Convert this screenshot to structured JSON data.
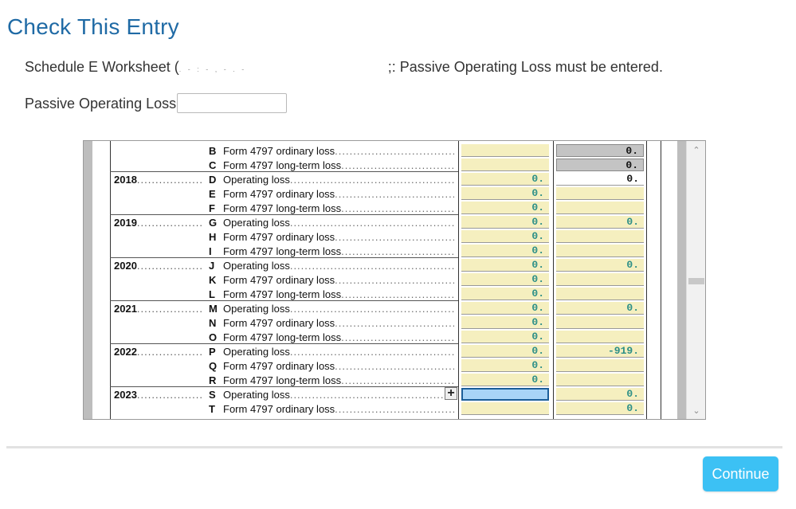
{
  "page": {
    "title": "Check This Entry",
    "message_prefix": "Schedule E Worksheet (",
    "message_redacted": ". - : - , - . -",
    "message_suffix": ";: Passive Operating Loss must be entered."
  },
  "field": {
    "label": "Passive Operating Loss",
    "value": ""
  },
  "worksheet": {
    "rows": [
      {
        "year": "",
        "letter": "B",
        "desc": "Form 4797 ordinary loss",
        "col1": "",
        "col2": "0.",
        "col2_style": "gray",
        "sep": false
      },
      {
        "year": "",
        "letter": "C",
        "desc": "Form 4797 long-term loss",
        "col1": "",
        "col2": "0.",
        "col2_style": "gray",
        "sep": true
      },
      {
        "year": "2018",
        "letter": "D",
        "desc": "Operating loss",
        "col1": "0.",
        "col2": "0.",
        "col2_style": "white",
        "sep": false
      },
      {
        "year": "",
        "letter": "E",
        "desc": "Form 4797 ordinary loss",
        "col1": "0.",
        "col2": "",
        "col2_style": "yellow",
        "sep": false
      },
      {
        "year": "",
        "letter": "F",
        "desc": "Form 4797 long-term loss",
        "col1": "0.",
        "col2": "",
        "col2_style": "yellow",
        "sep": true
      },
      {
        "year": "2019",
        "letter": "G",
        "desc": "Operating loss",
        "col1": "0.",
        "col2": "0.",
        "col2_style": "yellow",
        "sep": false
      },
      {
        "year": "",
        "letter": "H",
        "desc": "Form 4797 ordinary loss",
        "col1": "0.",
        "col2": "",
        "col2_style": "yellow",
        "sep": false
      },
      {
        "year": "",
        "letter": "I",
        "desc": "Form 4797 long-term loss",
        "col1": "0.",
        "col2": "",
        "col2_style": "yellow",
        "sep": true
      },
      {
        "year": "2020",
        "letter": "J",
        "desc": "Operating loss",
        "col1": "0.",
        "col2": "0.",
        "col2_style": "yellow",
        "sep": false
      },
      {
        "year": "",
        "letter": "K",
        "desc": "Form 4797 ordinary loss",
        "col1": "0.",
        "col2": "",
        "col2_style": "yellow",
        "sep": false
      },
      {
        "year": "",
        "letter": "L",
        "desc": "Form 4797 long-term loss",
        "col1": "0.",
        "col2": "",
        "col2_style": "yellow",
        "sep": true
      },
      {
        "year": "2021",
        "letter": "M",
        "desc": "Operating loss",
        "col1": "0.",
        "col2": "0.",
        "col2_style": "yellow",
        "sep": false
      },
      {
        "year": "",
        "letter": "N",
        "desc": "Form 4797 ordinary loss",
        "col1": "0.",
        "col2": "",
        "col2_style": "yellow",
        "sep": false
      },
      {
        "year": "",
        "letter": "O",
        "desc": "Form 4797 long-term loss",
        "col1": "0.",
        "col2": "",
        "col2_style": "yellow",
        "sep": true
      },
      {
        "year": "2022",
        "letter": "P",
        "desc": "Operating loss",
        "col1": "0.",
        "col2": "-919.",
        "col2_style": "yellow",
        "sep": false
      },
      {
        "year": "",
        "letter": "Q",
        "desc": "Form 4797 ordinary loss",
        "col1": "0.",
        "col2": "",
        "col2_style": "yellow",
        "sep": false
      },
      {
        "year": "",
        "letter": "R",
        "desc": "Form 4797 long-term loss",
        "col1": "0.",
        "col2": "",
        "col2_style": "yellow",
        "sep": true
      },
      {
        "year": "2023",
        "letter": "S",
        "desc": "Operating loss",
        "col1": "",
        "col1_active": true,
        "col2": "0.",
        "col2_style": "yellow",
        "sep": false
      },
      {
        "year": "",
        "letter": "T",
        "desc": "Form 4797 ordinary loss",
        "col1": "",
        "col2": "0.",
        "col2_style": "yellow",
        "sep": false
      }
    ],
    "active_icon": "plus-move-icon"
  },
  "footer": {
    "continue_label": "Continue"
  }
}
